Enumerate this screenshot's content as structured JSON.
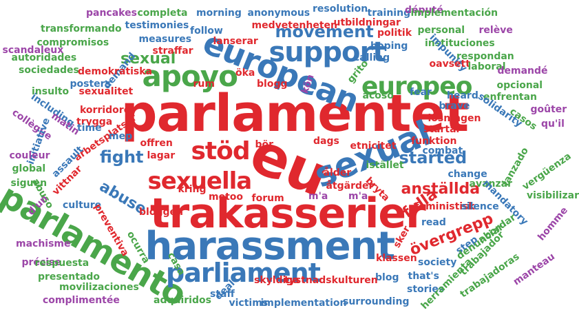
{
  "colors": {
    "red": "#e0282e",
    "blue": "#3a78b8",
    "green": "#4aa64a",
    "purple": "#9c46a8"
  },
  "words": [
    {
      "text": "parlamentet",
      "color": "red"
    },
    {
      "text": "eu",
      "color": "red"
    },
    {
      "text": "trakasserier",
      "color": "red"
    },
    {
      "text": "harassment",
      "color": "blue"
    },
    {
      "text": "european",
      "color": "blue"
    },
    {
      "text": "sexual",
      "color": "blue"
    },
    {
      "text": "support",
      "color": "blue"
    },
    {
      "text": "parlamento",
      "color": "green"
    },
    {
      "text": "apoyo",
      "color": "green"
    },
    {
      "text": "europeo",
      "color": "green"
    },
    {
      "text": "parliament",
      "color": "blue"
    },
    {
      "text": "stöd",
      "color": "red"
    },
    {
      "text": "sexuella",
      "color": "red"
    },
    {
      "text": "movement",
      "color": "blue"
    },
    {
      "text": "sexual",
      "color": "green"
    },
    {
      "text": "fight",
      "color": "blue"
    },
    {
      "text": "abuse",
      "color": "blue"
    },
    {
      "text": "started",
      "color": "blue"
    },
    {
      "text": "anställda",
      "color": "red"
    },
    {
      "text": "fulla",
      "color": "red"
    },
    {
      "text": "övergrepp",
      "color": "red"
    },
    {
      "text": "pancakes",
      "color": "purple"
    },
    {
      "text": "completa",
      "color": "green"
    },
    {
      "text": "morning",
      "color": "blue"
    },
    {
      "text": "anonymous",
      "color": "blue"
    },
    {
      "text": "resolution",
      "color": "blue"
    },
    {
      "text": "training",
      "color": "blue"
    },
    {
      "text": "député",
      "color": "purple"
    },
    {
      "text": "implementación",
      "color": "green"
    },
    {
      "text": "transformando",
      "color": "green"
    },
    {
      "text": "testimonies",
      "color": "blue"
    },
    {
      "text": "medvetenheten",
      "color": "red"
    },
    {
      "text": "utbildningar",
      "color": "red"
    },
    {
      "text": "follow",
      "color": "blue"
    },
    {
      "text": "politik",
      "color": "red"
    },
    {
      "text": "hoping",
      "color": "blue"
    },
    {
      "text": "personal",
      "color": "green"
    },
    {
      "text": "relève",
      "color": "purple"
    },
    {
      "text": "compromisos",
      "color": "green"
    },
    {
      "text": "measures",
      "color": "blue"
    },
    {
      "text": "lanserar",
      "color": "red"
    },
    {
      "text": "instituciones",
      "color": "green"
    },
    {
      "text": "scandaleux",
      "color": "purple"
    },
    {
      "text": "straffar",
      "color": "red"
    },
    {
      "text": "autoridades",
      "color": "green"
    },
    {
      "text": "calling",
      "color": "blue"
    },
    {
      "text": "respondan",
      "color": "green"
    },
    {
      "text": "impunity",
      "color": "blue"
    },
    {
      "text": "oavsett",
      "color": "red"
    },
    {
      "text": "laboral",
      "color": "green"
    },
    {
      "text": "sociedades",
      "color": "green"
    },
    {
      "text": "demand",
      "color": "blue"
    },
    {
      "text": "demokratiska",
      "color": "red"
    },
    {
      "text": "demandé",
      "color": "purple"
    },
    {
      "text": "grito",
      "color": "green"
    },
    {
      "text": "opcional",
      "color": "green"
    },
    {
      "text": "posters",
      "color": "blue"
    },
    {
      "text": "rum",
      "color": "red"
    },
    {
      "text": "öka",
      "color": "red"
    },
    {
      "text": "blogg",
      "color": "red"
    },
    {
      "text": "kön",
      "color": "purple"
    },
    {
      "text": "insulto",
      "color": "green"
    },
    {
      "text": "sexualitet",
      "color": "red"
    },
    {
      "text": "fear",
      "color": "blue"
    },
    {
      "text": "acoso",
      "color": "green"
    },
    {
      "text": "heard",
      "color": "blue"
    },
    {
      "text": "enfrentan",
      "color": "green"
    },
    {
      "text": "including",
      "color": "blue"
    },
    {
      "text": "korridorer",
      "color": "red"
    },
    {
      "text": "brave",
      "color": "blue"
    },
    {
      "text": "solidarity",
      "color": "blue"
    },
    {
      "text": "goûter",
      "color": "purple"
    },
    {
      "text": "collègue",
      "color": "purple"
    },
    {
      "text": "matin",
      "color": "purple"
    },
    {
      "text": "trygga",
      "color": "red"
    },
    {
      "text": "time",
      "color": "blue"
    },
    {
      "text": "lösningen",
      "color": "red"
    },
    {
      "text": "casos",
      "color": "green"
    },
    {
      "text": "qu'il",
      "color": "purple"
    },
    {
      "text": "arbetsplatser",
      "color": "red"
    },
    {
      "text": "mep",
      "color": "blue"
    },
    {
      "text": "startar",
      "color": "red"
    },
    {
      "text": "initiative",
      "color": "blue"
    },
    {
      "text": "couleur",
      "color": "purple"
    },
    {
      "text": "offren",
      "color": "red"
    },
    {
      "text": "dags",
      "color": "red"
    },
    {
      "text": "etnicitet",
      "color": "red"
    },
    {
      "text": "funktion",
      "color": "red"
    },
    {
      "text": "combat",
      "color": "blue"
    },
    {
      "text": "assault",
      "color": "blue"
    },
    {
      "text": "lagar",
      "color": "red"
    },
    {
      "text": "bör",
      "color": "red"
    },
    {
      "text": "istället",
      "color": "green"
    },
    {
      "text": "lanzado",
      "color": "green"
    },
    {
      "text": "vergüenza",
      "color": "green"
    },
    {
      "text": "global",
      "color": "green"
    },
    {
      "text": "siguen",
      "color": "green"
    },
    {
      "text": "abuso",
      "color": "green"
    },
    {
      "text": "ålder",
      "color": "red"
    },
    {
      "text": "change",
      "color": "blue"
    },
    {
      "text": "avanzar",
      "color": "green"
    },
    {
      "text": "vittnar",
      "color": "red"
    },
    {
      "text": "åtgärder",
      "color": "red"
    },
    {
      "text": "bryta",
      "color": "red"
    },
    {
      "text": "mandatory",
      "color": "blue"
    },
    {
      "text": "visibilizar",
      "color": "green"
    },
    {
      "text": "d'un",
      "color": "purple"
    },
    {
      "text": "culture",
      "color": "blue"
    },
    {
      "text": "metoo",
      "color": "red"
    },
    {
      "text": "forum",
      "color": "red"
    },
    {
      "text": "m'a",
      "color": "purple"
    },
    {
      "text": "m'a",
      "color": "purple"
    },
    {
      "text": "kring",
      "color": "red"
    },
    {
      "text": "bloggen",
      "color": "red"
    },
    {
      "text": "feministisk",
      "color": "red"
    },
    {
      "text": "silence",
      "color": "blue"
    },
    {
      "text": "homme",
      "color": "purple"
    },
    {
      "text": "preventiva",
      "color": "red"
    },
    {
      "text": "read",
      "color": "blue"
    },
    {
      "text": "abordar",
      "color": "green"
    },
    {
      "text": "ocurra",
      "color": "green"
    },
    {
      "text": "sker",
      "color": "red"
    },
    {
      "text": "step",
      "color": "blue"
    },
    {
      "text": "denunciar",
      "color": "green"
    },
    {
      "text": "machisme",
      "color": "purple"
    },
    {
      "text": "klassen",
      "color": "red"
    },
    {
      "text": "society",
      "color": "blue"
    },
    {
      "text": "trabajador",
      "color": "green"
    },
    {
      "text": "précise",
      "color": "purple"
    },
    {
      "text": "respuesta",
      "color": "green"
    },
    {
      "text": "casa",
      "color": "green"
    },
    {
      "text": "blog",
      "color": "blue"
    },
    {
      "text": "that's",
      "color": "blue"
    },
    {
      "text": "manteau",
      "color": "purple"
    },
    {
      "text": "presentado",
      "color": "green"
    },
    {
      "text": "deal",
      "color": "blue"
    },
    {
      "text": "skyldiga",
      "color": "red"
    },
    {
      "text": "tystnadskulturen",
      "color": "red"
    },
    {
      "text": "stories",
      "color": "blue"
    },
    {
      "text": "trabajadoras",
      "color": "green"
    },
    {
      "text": "movilizaciones",
      "color": "green"
    },
    {
      "text": "staff",
      "color": "blue"
    },
    {
      "text": "herramienta",
      "color": "green"
    },
    {
      "text": "complimentée",
      "color": "purple"
    },
    {
      "text": "adquiridos",
      "color": "green"
    },
    {
      "text": "victims",
      "color": "blue"
    },
    {
      "text": "implementation",
      "color": "blue"
    },
    {
      "text": "surrounding",
      "color": "blue"
    }
  ]
}
